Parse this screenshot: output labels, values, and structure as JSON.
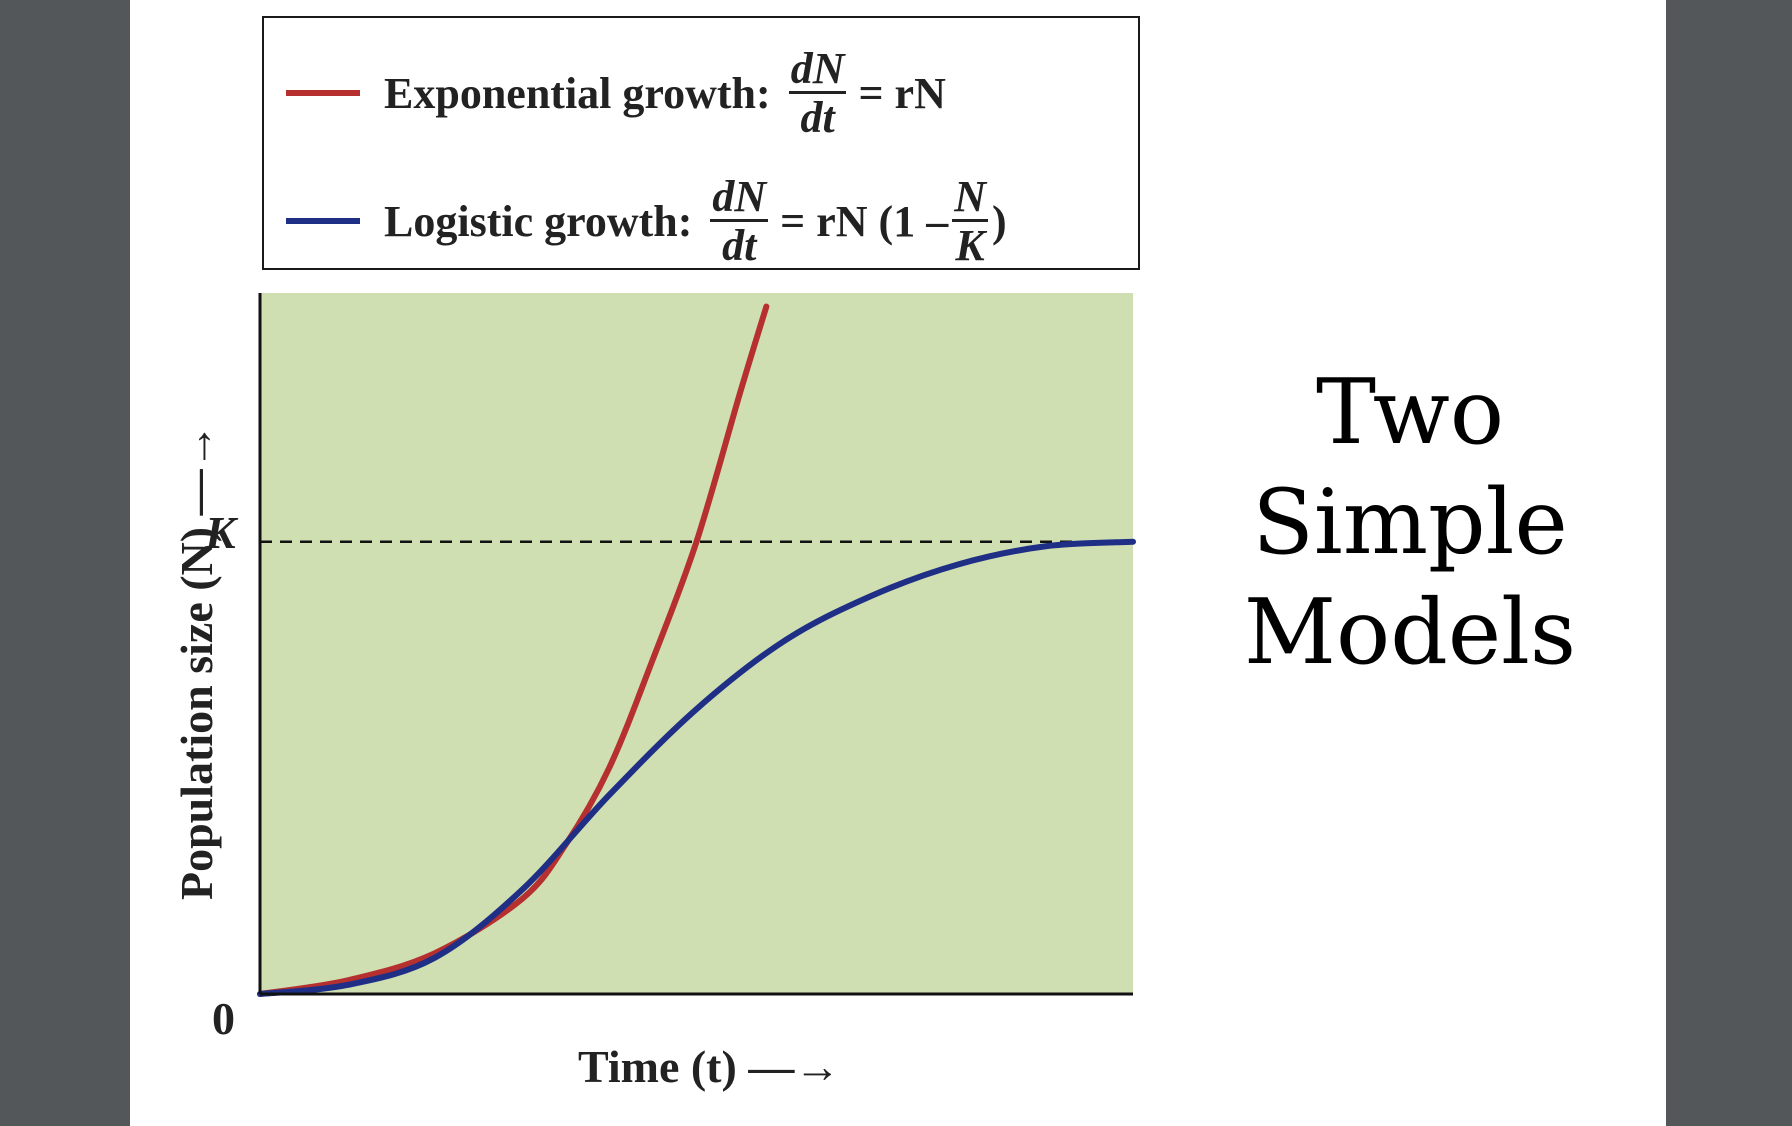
{
  "legend": {
    "exponential": {
      "label": "Exponential growth:",
      "frac_num": "dN",
      "frac_den": "dt",
      "rhs": "= rN"
    },
    "logistic": {
      "label": "Logistic growth:",
      "frac_num": "dN",
      "frac_den": "dt",
      "rhs": "= rN (1 –",
      "inner_num": "N",
      "inner_den": "K",
      "close": ")"
    }
  },
  "axes": {
    "y_label": "Population size (N) —→",
    "x_label": "Time (t) —→",
    "k_tick": "K",
    "zero_tick": "0"
  },
  "slide_title": [
    "Two",
    "Simple",
    "Models"
  ],
  "colors": {
    "exponential": "#b5302e",
    "logistic": "#1f2f86",
    "plot_bg": "#cfdfb2",
    "frame": "#53575a"
  },
  "chart_data": {
    "type": "line",
    "title": "",
    "xlabel": "Time (t)",
    "ylabel": "Population size (N)",
    "x_range": [
      0,
      10
    ],
    "y_range": [
      0,
      1.55
    ],
    "carrying_capacity": 1.0,
    "series": [
      {
        "name": "Exponential growth",
        "x": [
          0,
          1,
          2,
          3,
          3.5,
          4,
          4.5,
          5,
          5.5,
          5.8
        ],
        "y": [
          0.0,
          0.03,
          0.09,
          0.21,
          0.33,
          0.5,
          0.74,
          1.0,
          1.33,
          1.52
        ]
      },
      {
        "name": "Logistic growth",
        "x": [
          0,
          1,
          2,
          3,
          4,
          5,
          6,
          7,
          8,
          9,
          10
        ],
        "y": [
          0.0,
          0.02,
          0.08,
          0.23,
          0.44,
          0.63,
          0.78,
          0.88,
          0.95,
          0.99,
          1.0
        ]
      }
    ]
  }
}
